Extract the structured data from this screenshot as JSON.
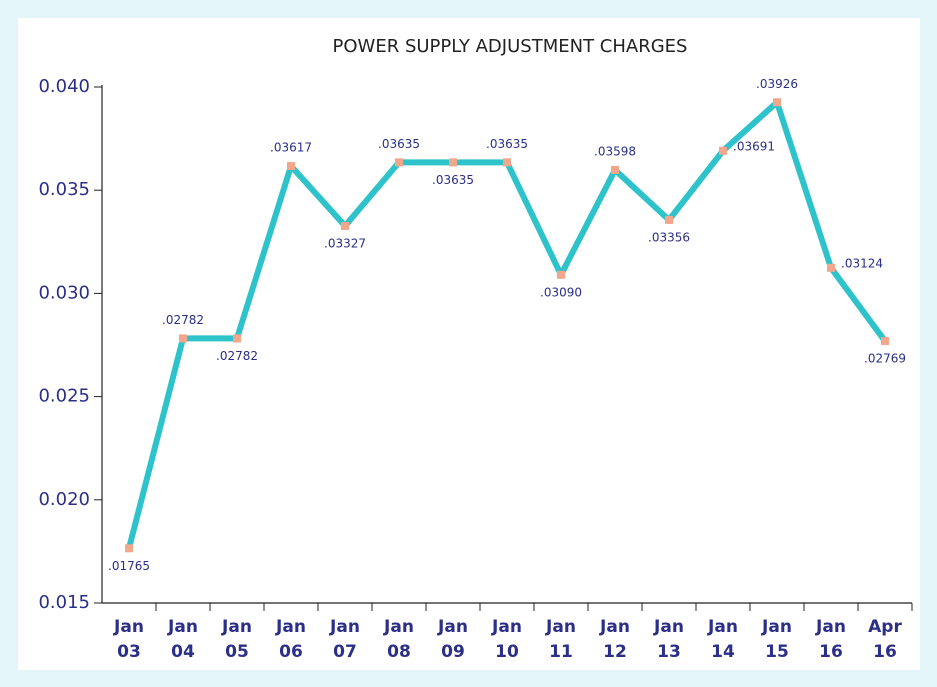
{
  "chart_data": {
    "type": "line",
    "title": "POWER SUPPLY ADJUSTMENT CHARGES",
    "categories": [
      "Jan 03",
      "Jan 04",
      "Jan 05",
      "Jan 06",
      "Jan 07",
      "Jan 08",
      "Jan 09",
      "Jan 10",
      "Jan 11",
      "Jan 12",
      "Jan 13",
      "Jan 14",
      "Jan 15",
      "Jan 16",
      "Apr 16"
    ],
    "series": [
      {
        "color": "#2ec3cb",
        "marker_color": "#f2a68c",
        "values": [
          0.01765,
          0.02782,
          0.02782,
          0.03617,
          0.03327,
          0.03635,
          0.03635,
          0.03635,
          0.0309,
          0.03598,
          0.03356,
          0.03691,
          0.03926,
          0.03124,
          0.02769
        ],
        "value_labels": [
          ".01765",
          ".02782",
          ".02782",
          ".03617",
          ".03327",
          ".03635",
          ".03635",
          ".03635",
          ".03090",
          ".03598",
          ".03356",
          ".03691",
          ".03926",
          ".03124",
          ".02769"
        ]
      }
    ],
    "ylim": [
      0.015,
      0.04
    ],
    "yticks": [
      0.015,
      {
        "value": 0.02,
        "label": "0.020"
      },
      0.025,
      {
        "value": 0.03,
        "label": "0.030"
      },
      0.035,
      {
        "value": 0.04,
        "label": "0.040"
      }
    ]
  }
}
